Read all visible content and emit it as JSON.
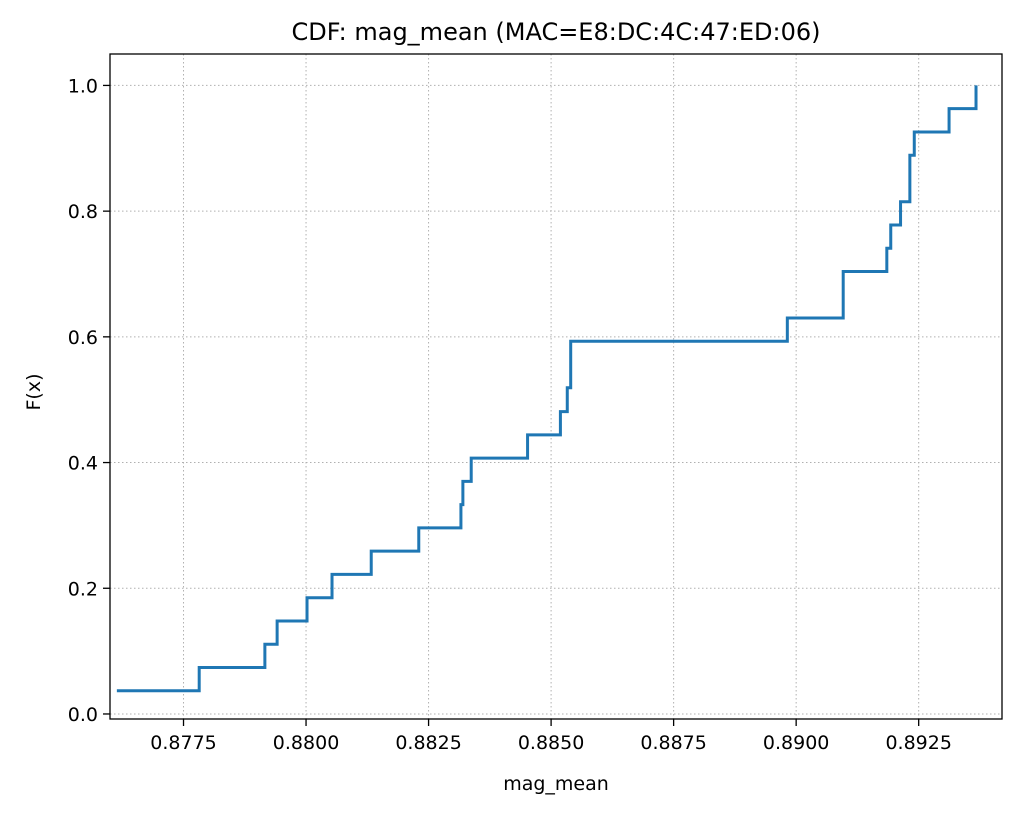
{
  "chart_data": {
    "type": "line",
    "drawstyle": "steps-post",
    "title": "CDF: mag_mean (MAC=E8:DC:4C:47:ED:06)",
    "xlabel": "mag_mean",
    "ylabel": "F(x)",
    "xlim": [
      0.876,
      0.8942
    ],
    "ylim": [
      -0.008,
      1.05
    ],
    "xticks": [
      0.8775,
      0.88,
      0.8825,
      0.885,
      0.8875,
      0.89,
      0.8925
    ],
    "xtick_labels": [
      "0.8775",
      "0.8800",
      "0.8825",
      "0.8850",
      "0.8875",
      "0.8900",
      "0.8925"
    ],
    "yticks": [
      0.0,
      0.2,
      0.4,
      0.6,
      0.8,
      1.0
    ],
    "ytick_labels": [
      "0.0",
      "0.2",
      "0.4",
      "0.6",
      "0.8",
      "1.0"
    ],
    "grid": true,
    "line_color": "#1f77b4",
    "series": [
      {
        "x": [
          0.87614,
          0.87782,
          0.87916,
          0.87941,
          0.88002,
          0.88053,
          0.88133,
          0.8823,
          0.88316,
          0.8832,
          0.88337,
          0.88452,
          0.88519,
          0.88533,
          0.8854,
          0.88982,
          0.89096,
          0.89185,
          0.89193,
          0.89213,
          0.89232,
          0.89241,
          0.89312,
          0.89367
        ],
        "y": [
          0.037,
          0.074,
          0.111,
          0.148,
          0.185,
          0.222,
          0.259,
          0.296,
          0.333,
          0.37,
          0.407,
          0.444,
          0.481,
          0.519,
          0.593,
          0.63,
          0.704,
          0.741,
          0.778,
          0.815,
          0.889,
          0.926,
          0.963,
          1.0
        ]
      }
    ]
  }
}
